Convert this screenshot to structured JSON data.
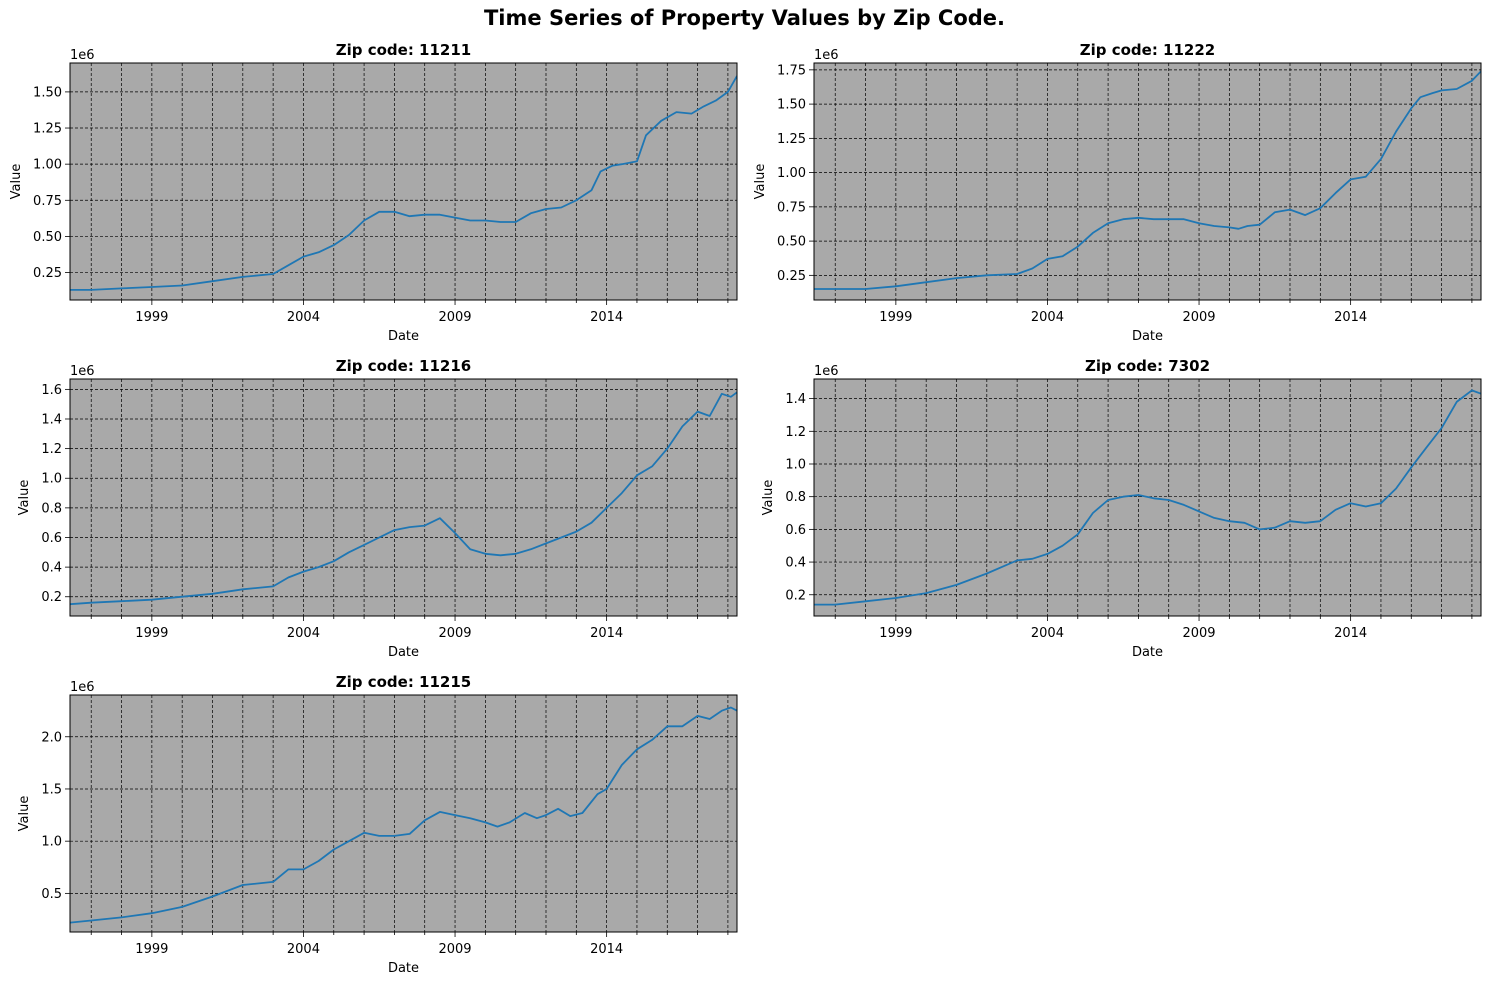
{
  "title": "Time Series of Property Values by Zip Code.",
  "chart_data": [
    {
      "type": "line",
      "title": "Zip code: 11211",
      "xlabel": "Date",
      "ylabel": "Value",
      "y_offset_label": "1e6",
      "xlim": [
        1996.3,
        2018.3
      ],
      "ylim": [
        0.06,
        1.7
      ],
      "xticks": [
        1999,
        2004,
        2009,
        2014
      ],
      "yticks": [
        0.25,
        0.5,
        0.75,
        1.0,
        1.25,
        1.5
      ],
      "ytick_labels": [
        "0.25",
        "0.50",
        "0.75",
        "1.00",
        "1.25",
        "1.50"
      ],
      "grid": true,
      "background": "#a9a9a9",
      "line_color": "#1f77b4",
      "x": [
        1996.3,
        1997.0,
        1998.0,
        1999.0,
        2000.0,
        2001.0,
        2002.0,
        2003.0,
        2003.5,
        2004.0,
        2004.5,
        2005.0,
        2005.5,
        2006.0,
        2006.5,
        2007.0,
        2007.5,
        2008.0,
        2008.5,
        2009.0,
        2009.5,
        2010.0,
        2010.5,
        2011.0,
        2011.5,
        2012.0,
        2012.5,
        2013.0,
        2013.5,
        2013.8,
        2014.2,
        2014.5,
        2015.0,
        2015.3,
        2015.8,
        2016.3,
        2016.8,
        2017.2,
        2017.6,
        2018.0,
        2018.3
      ],
      "y": [
        0.13,
        0.13,
        0.14,
        0.15,
        0.16,
        0.19,
        0.22,
        0.24,
        0.3,
        0.36,
        0.39,
        0.44,
        0.51,
        0.61,
        0.67,
        0.67,
        0.64,
        0.65,
        0.65,
        0.63,
        0.61,
        0.61,
        0.6,
        0.6,
        0.66,
        0.69,
        0.7,
        0.75,
        0.82,
        0.95,
        0.99,
        1.0,
        1.02,
        1.2,
        1.3,
        1.36,
        1.35,
        1.4,
        1.44,
        1.5,
        1.61
      ]
    },
    {
      "type": "line",
      "title": "Zip code: 11222",
      "xlabel": "Date",
      "ylabel": "Value",
      "y_offset_label": "1e6",
      "xlim": [
        1996.3,
        2018.3
      ],
      "ylim": [
        0.07,
        1.8
      ],
      "xticks": [
        1999,
        2004,
        2009,
        2014
      ],
      "yticks": [
        0.25,
        0.5,
        0.75,
        1.0,
        1.25,
        1.5,
        1.75
      ],
      "ytick_labels": [
        "0.25",
        "0.50",
        "0.75",
        "1.00",
        "1.25",
        "1.50",
        "1.75"
      ],
      "grid": true,
      "background": "#a9a9a9",
      "line_color": "#1f77b4",
      "x": [
        1996.3,
        1997.0,
        1998.0,
        1999.0,
        2000.0,
        2001.0,
        2002.0,
        2003.0,
        2003.5,
        2004.0,
        2004.5,
        2005.0,
        2005.5,
        2006.0,
        2006.5,
        2007.0,
        2007.5,
        2008.0,
        2008.5,
        2009.0,
        2009.5,
        2010.0,
        2010.3,
        2010.6,
        2011.0,
        2011.5,
        2012.0,
        2012.5,
        2013.0,
        2013.5,
        2014.0,
        2014.5,
        2015.0,
        2015.5,
        2016.0,
        2016.3,
        2016.7,
        2017.0,
        2017.5,
        2018.0,
        2018.3
      ],
      "y": [
        0.15,
        0.15,
        0.15,
        0.17,
        0.2,
        0.23,
        0.25,
        0.26,
        0.3,
        0.37,
        0.39,
        0.46,
        0.56,
        0.63,
        0.66,
        0.67,
        0.66,
        0.66,
        0.66,
        0.63,
        0.61,
        0.6,
        0.59,
        0.61,
        0.62,
        0.71,
        0.73,
        0.69,
        0.74,
        0.85,
        0.95,
        0.97,
        1.1,
        1.3,
        1.47,
        1.55,
        1.58,
        1.6,
        1.61,
        1.67,
        1.74
      ]
    },
    {
      "type": "line",
      "title": "Zip code: 11216",
      "xlabel": "Date",
      "ylabel": "Value",
      "y_offset_label": "1e6",
      "xlim": [
        1996.3,
        2018.3
      ],
      "ylim": [
        0.07,
        1.67
      ],
      "xticks": [
        1999,
        2004,
        2009,
        2014
      ],
      "yticks": [
        0.2,
        0.4,
        0.6,
        0.8,
        1.0,
        1.2,
        1.4,
        1.6
      ],
      "ytick_labels": [
        "0.2",
        "0.4",
        "0.6",
        "0.8",
        "1.0",
        "1.2",
        "1.4",
        "1.6"
      ],
      "grid": true,
      "background": "#a9a9a9",
      "line_color": "#1f77b4",
      "x": [
        1996.3,
        1997.0,
        1998.0,
        1999.0,
        2000.0,
        2001.0,
        2002.0,
        2003.0,
        2003.5,
        2004.0,
        2004.5,
        2005.0,
        2005.5,
        2006.0,
        2006.5,
        2007.0,
        2007.5,
        2008.0,
        2008.5,
        2009.0,
        2009.5,
        2010.0,
        2010.5,
        2011.0,
        2011.5,
        2012.0,
        2012.5,
        2013.0,
        2013.5,
        2014.0,
        2014.5,
        2015.0,
        2015.5,
        2016.0,
        2016.5,
        2017.0,
        2017.4,
        2017.8,
        2018.1,
        2018.3
      ],
      "y": [
        0.15,
        0.16,
        0.17,
        0.18,
        0.2,
        0.22,
        0.25,
        0.27,
        0.33,
        0.37,
        0.4,
        0.44,
        0.5,
        0.55,
        0.6,
        0.65,
        0.67,
        0.68,
        0.73,
        0.63,
        0.52,
        0.49,
        0.48,
        0.49,
        0.52,
        0.56,
        0.6,
        0.64,
        0.7,
        0.8,
        0.9,
        1.02,
        1.08,
        1.2,
        1.35,
        1.45,
        1.42,
        1.57,
        1.55,
        1.58
      ]
    },
    {
      "type": "line",
      "title": "Zip code: 7302",
      "xlabel": "Date",
      "ylabel": "Value",
      "y_offset_label": "1e6",
      "xlim": [
        1996.3,
        2018.3
      ],
      "ylim": [
        0.07,
        1.52
      ],
      "xticks": [
        1999,
        2004,
        2009,
        2014
      ],
      "yticks": [
        0.2,
        0.4,
        0.6,
        0.8,
        1.0,
        1.2,
        1.4
      ],
      "ytick_labels": [
        "0.2",
        "0.4",
        "0.6",
        "0.8",
        "1.0",
        "1.2",
        "1.4"
      ],
      "grid": true,
      "background": "#a9a9a9",
      "line_color": "#1f77b4",
      "x": [
        1996.3,
        1997.0,
        1998.0,
        1999.0,
        2000.0,
        2001.0,
        2002.0,
        2003.0,
        2003.5,
        2004.0,
        2004.5,
        2005.0,
        2005.5,
        2006.0,
        2006.5,
        2007.0,
        2007.5,
        2008.0,
        2008.5,
        2009.0,
        2009.5,
        2010.0,
        2010.5,
        2011.0,
        2011.5,
        2012.0,
        2012.5,
        2013.0,
        2013.5,
        2014.0,
        2014.5,
        2015.0,
        2015.5,
        2016.0,
        2016.5,
        2017.0,
        2017.5,
        2018.0,
        2018.3
      ],
      "y": [
        0.14,
        0.14,
        0.16,
        0.18,
        0.21,
        0.26,
        0.33,
        0.41,
        0.42,
        0.45,
        0.5,
        0.57,
        0.7,
        0.78,
        0.8,
        0.81,
        0.79,
        0.78,
        0.75,
        0.71,
        0.67,
        0.65,
        0.64,
        0.6,
        0.61,
        0.65,
        0.64,
        0.65,
        0.72,
        0.76,
        0.74,
        0.76,
        0.85,
        0.98,
        1.1,
        1.22,
        1.38,
        1.45,
        1.43
      ]
    },
    {
      "type": "line",
      "title": "Zip code: 11215",
      "xlabel": "Date",
      "ylabel": "Value",
      "y_offset_label": "1e6",
      "xlim": [
        1996.3,
        2018.3
      ],
      "ylim": [
        0.13,
        2.4
      ],
      "xticks": [
        1999,
        2004,
        2009,
        2014
      ],
      "yticks": [
        0.5,
        1.0,
        1.5,
        2.0
      ],
      "ytick_labels": [
        "0.5",
        "1.0",
        "1.5",
        "2.0"
      ],
      "grid": true,
      "background": "#a9a9a9",
      "line_color": "#1f77b4",
      "x": [
        1996.3,
        1997.0,
        1998.0,
        1999.0,
        2000.0,
        2001.0,
        2002.0,
        2003.0,
        2003.5,
        2004.0,
        2004.5,
        2005.0,
        2005.5,
        2006.0,
        2006.5,
        2007.0,
        2007.5,
        2008.0,
        2008.5,
        2009.0,
        2009.5,
        2010.0,
        2010.4,
        2010.8,
        2011.3,
        2011.7,
        2012.0,
        2012.4,
        2012.8,
        2013.2,
        2013.7,
        2014.0,
        2014.5,
        2015.0,
        2015.5,
        2016.0,
        2016.5,
        2017.0,
        2017.4,
        2017.8,
        2018.1,
        2018.3
      ],
      "y": [
        0.22,
        0.24,
        0.27,
        0.31,
        0.37,
        0.47,
        0.58,
        0.61,
        0.73,
        0.73,
        0.81,
        0.92,
        1.0,
        1.08,
        1.05,
        1.05,
        1.07,
        1.2,
        1.28,
        1.25,
        1.22,
        1.18,
        1.14,
        1.18,
        1.27,
        1.22,
        1.25,
        1.31,
        1.24,
        1.27,
        1.45,
        1.5,
        1.73,
        1.88,
        1.97,
        2.1,
        2.1,
        2.2,
        2.17,
        2.25,
        2.28,
        2.25
      ]
    }
  ]
}
